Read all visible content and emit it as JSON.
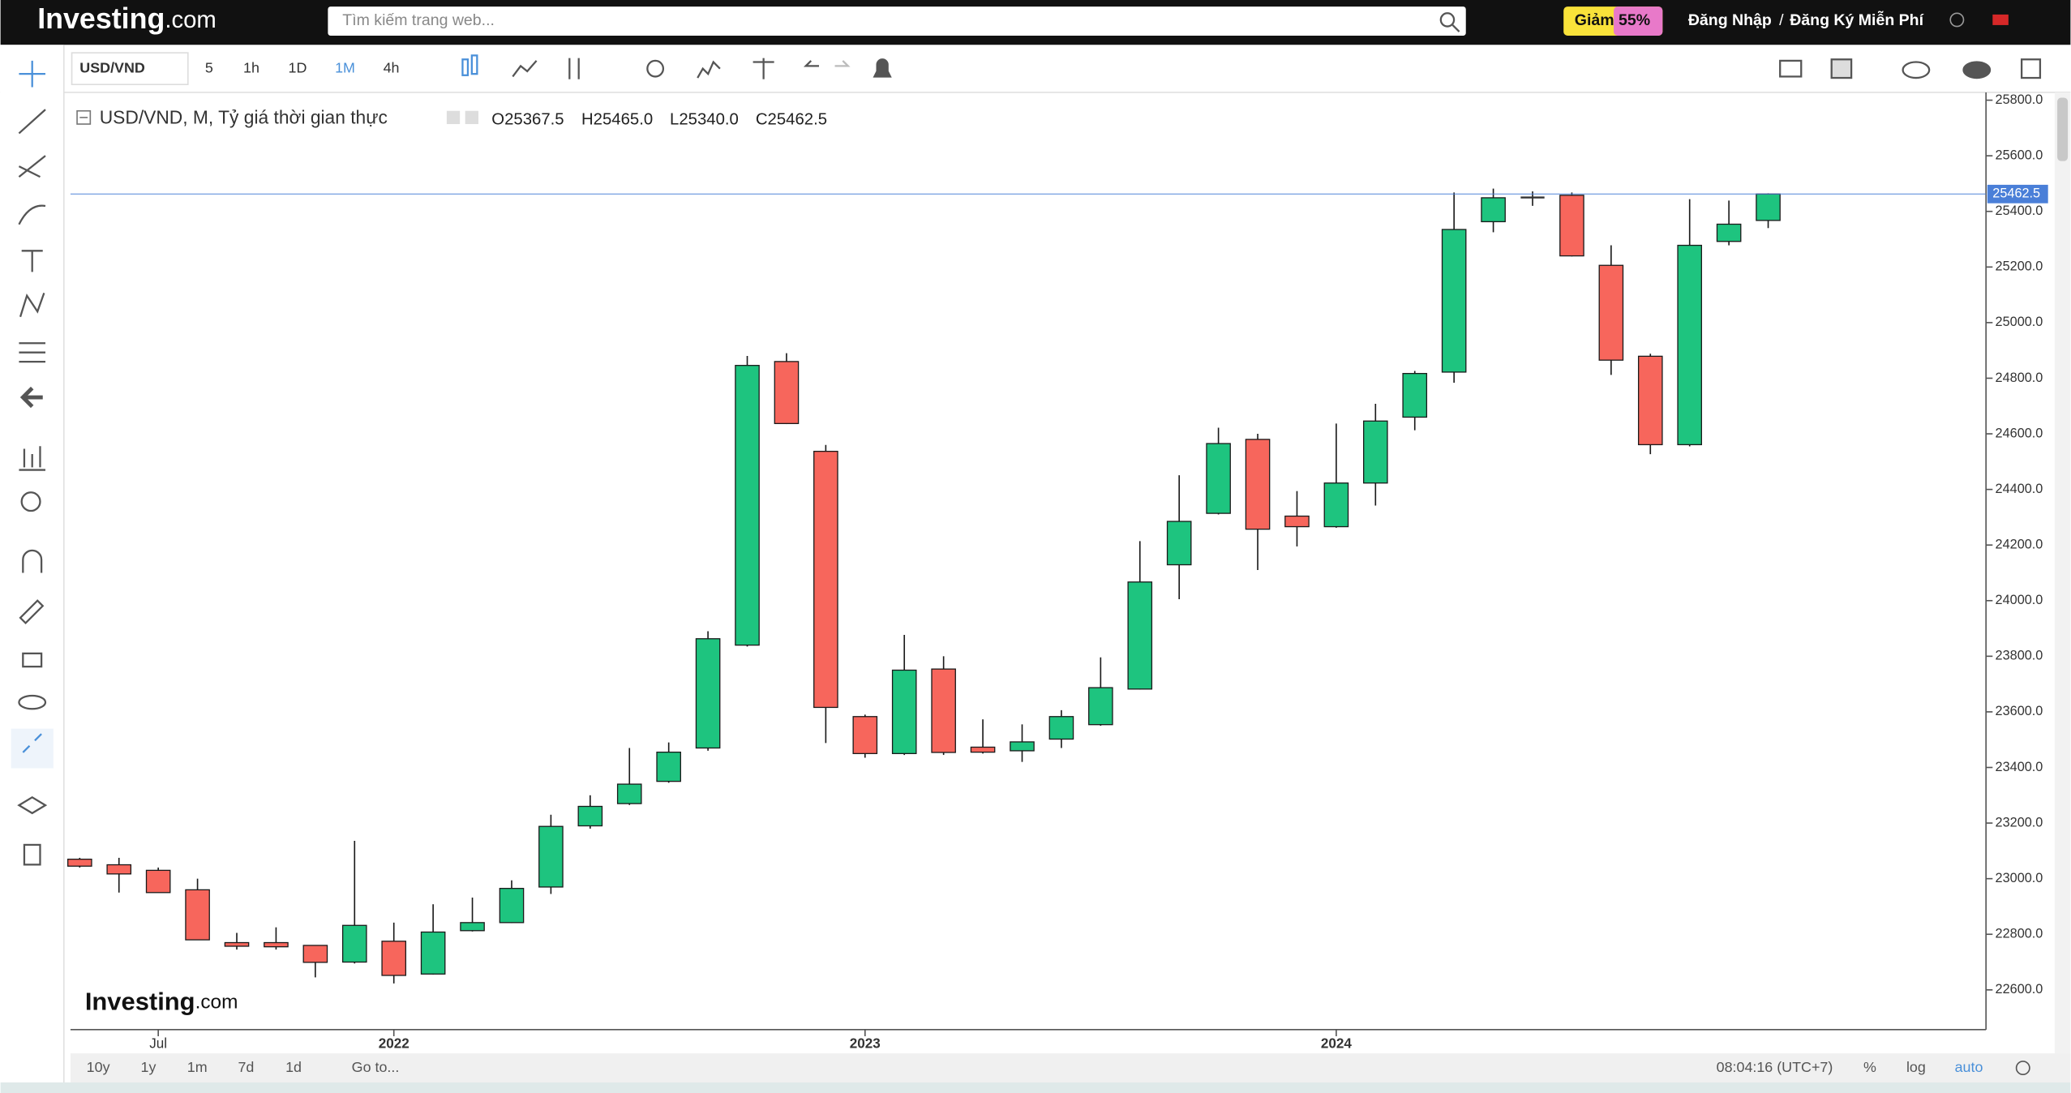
{
  "nav": {
    "logo": "Investing",
    "logo_suffix": ".com",
    "search_placeholder": "Tìm kiếm trang web...",
    "promo": "Giảm 55%",
    "login": "Đăng Nhập",
    "separator": "/",
    "signup": "Đăng Ký Miễn Phí"
  },
  "toolbar": {
    "symbol": "USD/VND",
    "intervals": [
      "5",
      "1h",
      "1D",
      "1M",
      "4h"
    ],
    "active_interval": 3
  },
  "legend": {
    "title": "USD/VND, M, Tỷ giá thời gian thực",
    "ohlc": [
      "O25367.5",
      "H25465.0",
      "L25340.0",
      "C25462.5"
    ]
  },
  "watermark": {
    "logo": "Investing",
    "logo_suffix": ".com"
  },
  "footer": {
    "ranges": [
      "10y",
      "1y",
      "1m",
      "7d",
      "1d"
    ],
    "goto": "Go to...",
    "clock": "08:04:16 (UTC+7)",
    "options": [
      "%",
      "log",
      "auto"
    ]
  },
  "chart_data": {
    "type": "candlestick",
    "categories": [
      null,
      null,
      "Jul",
      null,
      null,
      null,
      null,
      null,
      "2022",
      null,
      null,
      null,
      null,
      null,
      null,
      null,
      null,
      null,
      null,
      null,
      "2023",
      null,
      null,
      null,
      null,
      null,
      null,
      null,
      null,
      null,
      null,
      null,
      "2024",
      null,
      null,
      null,
      null,
      null,
      null,
      null,
      null,
      null,
      null,
      null
    ],
    "open": [
      23070,
      23050,
      23030,
      22960,
      22770,
      22770,
      22760,
      22700,
      22775,
      22657,
      22813,
      22842,
      22970,
      23190,
      23270,
      23350,
      23470,
      23840,
      24860,
      24537,
      23583,
      23450,
      23754,
      23473,
      23460,
      23502,
      23554,
      23682,
      24129,
      24314,
      24580,
      24304,
      24266,
      24423,
      24660,
      24822,
      25363,
      25450,
      25458,
      25206,
      24879,
      24561,
      25292,
      25367.5
    ],
    "high": [
      23075,
      23075,
      23040,
      23000,
      22805,
      22825,
      22760,
      23136,
      22842,
      22908,
      22932,
      22994,
      23230,
      23300,
      23470,
      23490,
      23890,
      24880,
      24890,
      24560,
      23590,
      23877,
      23800,
      23573,
      23555,
      23606,
      23796,
      24214,
      24451,
      24622,
      24600,
      24394,
      24637,
      24708,
      24826,
      25468,
      25482,
      25472,
      25468,
      25278,
      24888,
      25444,
      25439,
      25465
    ],
    "low": [
      23040,
      22950,
      22950,
      22780,
      22745,
      22745,
      22645,
      22695,
      22623,
      22655,
      22810,
      22840,
      22945,
      23180,
      23265,
      23345,
      23460,
      23835,
      24635,
      23488,
      23435,
      23445,
      23445,
      23450,
      23420,
      23470,
      23550,
      23680,
      24005,
      24310,
      24110,
      24195,
      24262,
      24342,
      24613,
      24784,
      25325,
      25420,
      25238,
      24812,
      24527,
      24555,
      25278,
      25340
    ],
    "close": [
      23045,
      23017,
      22950,
      22780,
      22757,
      22755,
      22699,
      22832,
      22652,
      22808,
      22842,
      22965,
      23188,
      23260,
      23340,
      23455,
      23863,
      24846,
      24637,
      23616,
      23450,
      23750,
      23454,
      23455,
      23492,
      23583,
      23687,
      24067,
      24285,
      24565,
      24257,
      24266,
      24423,
      24646,
      24817,
      25335,
      25449,
      25450,
      25240,
      24865,
      24561,
      25278,
      25354,
      25462.5
    ],
    "up_color": "#1ec47f",
    "down_color": "#f7665c",
    "doji_color": "#333333",
    "border_color": "#1a1a1a",
    "ylim": [
      22457,
      25828
    ],
    "yticks": [
      {
        "value": 22600,
        "label": "22600.0"
      },
      {
        "value": 22800,
        "label": "22800.0"
      },
      {
        "value": 23000,
        "label": "23000.0"
      },
      {
        "value": 23200,
        "label": "23200.0"
      },
      {
        "value": 23400,
        "label": "23400.0"
      },
      {
        "value": 23600,
        "label": "23600.0"
      },
      {
        "value": 23800,
        "label": "23800.0"
      },
      {
        "value": 24000,
        "label": "24000.0"
      },
      {
        "value": 24200,
        "label": "24200.0"
      },
      {
        "value": 24400,
        "label": "24400.0"
      },
      {
        "value": 24600,
        "label": "24600.0"
      },
      {
        "value": 24800,
        "label": "24800.0"
      },
      {
        "value": 25000,
        "label": "25000.0"
      },
      {
        "value": 25200,
        "label": "25200.0"
      },
      {
        "value": 25400,
        "label": "25400.0"
      },
      {
        "value": 25600,
        "label": "25600.0"
      },
      {
        "value": 25800,
        "label": "25800.0"
      }
    ],
    "last_price": {
      "value": 25462.5,
      "label": "25462.5"
    },
    "last_price_color": "#4a7fd8",
    "grid": false
  }
}
